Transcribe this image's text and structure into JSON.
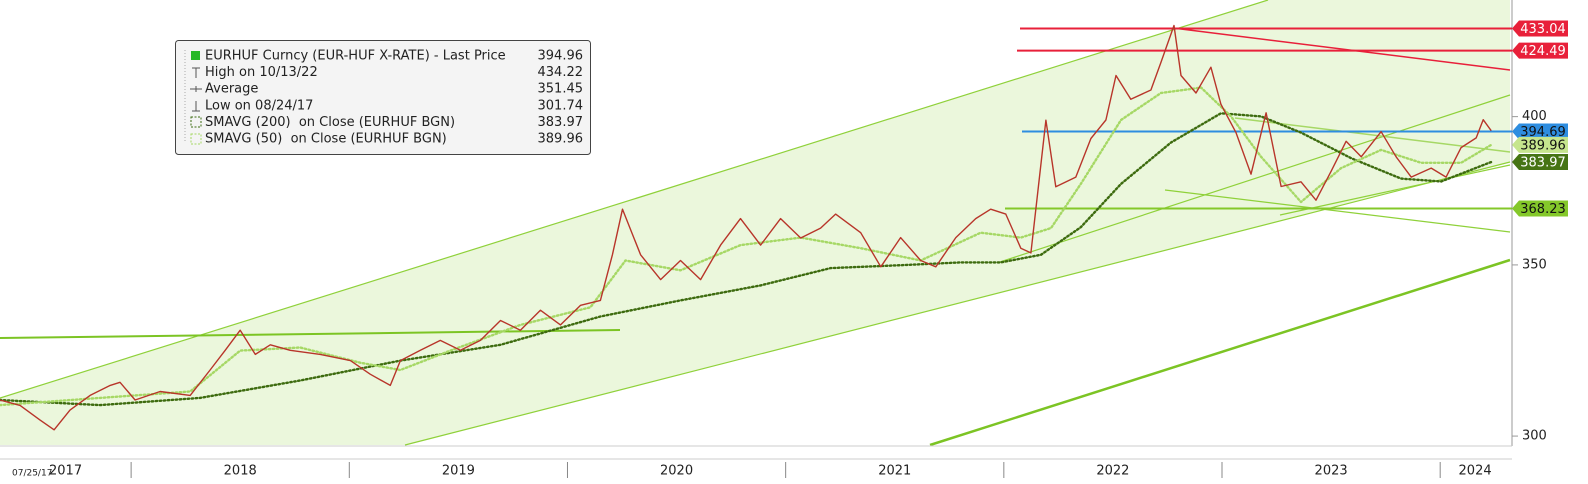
{
  "chart_data": {
    "type": "line",
    "ylog": true,
    "ylim": [
      297.6,
      444.3
    ],
    "yticks": [
      300,
      350,
      400
    ],
    "xlim": [
      2017.399,
      2024.32
    ],
    "xticks": [
      2018,
      2019,
      2020,
      2021,
      2022,
      2023,
      2024
    ],
    "x_labels": [
      "2017",
      "2018",
      "2019",
      "2020",
      "2021",
      "2022",
      "2023",
      "2024"
    ],
    "start_date_label": "07/25/17",
    "series": [
      {
        "name": "EURHUF Curncy (EUR-HUF X-RATE) - Last Price",
        "legend_value": 394.96,
        "color": "#b8352a",
        "style": "solid",
        "x": [
          2017.399,
          2017.491,
          2017.582,
          2017.647,
          2017.72,
          2017.812,
          2017.904,
          2017.949,
          2018.018,
          2018.133,
          2018.271,
          2018.362,
          2018.431,
          2018.5,
          2018.569,
          2018.638,
          2018.729,
          2018.867,
          2019.005,
          2019.096,
          2019.188,
          2019.234,
          2019.326,
          2019.417,
          2019.509,
          2019.601,
          2019.693,
          2019.784,
          2019.876,
          2019.968,
          2020.06,
          2020.151,
          2020.206,
          2020.252,
          2020.335,
          2020.427,
          2020.518,
          2020.61,
          2020.702,
          2020.793,
          2020.885,
          2020.977,
          2021.069,
          2021.16,
          2021.229,
          2021.344,
          2021.436,
          2021.527,
          2021.619,
          2021.688,
          2021.78,
          2021.871,
          2021.94,
          2022.009,
          2022.078,
          2022.124,
          2022.193,
          2022.238,
          2022.33,
          2022.399,
          2022.468,
          2022.514,
          2022.582,
          2022.674,
          2022.72,
          2022.78,
          2022.812,
          2022.881,
          2022.949,
          2022.995,
          2023.064,
          2023.133,
          2023.202,
          2023.271,
          2023.362,
          2023.431,
          2023.5,
          2023.569,
          2023.638,
          2023.729,
          2023.798,
          2023.867,
          2023.959,
          2024.027,
          2024.096,
          2024.165,
          2024.197,
          2024.234
        ],
        "values": [
          309.9,
          308.4,
          304.4,
          301.7,
          307.1,
          311.2,
          314.0,
          314.9,
          309.9,
          312.3,
          311.2,
          318.4,
          324.1,
          330.0,
          322.9,
          325.7,
          324.1,
          322.9,
          321.1,
          317.2,
          314.0,
          321.1,
          324.1,
          327.0,
          324.1,
          327.0,
          332.9,
          330.0,
          336.0,
          331.6,
          337.5,
          339.0,
          353.2,
          368.0,
          353.2,
          345.4,
          351.4,
          345.4,
          356.3,
          364.9,
          356.3,
          364.9,
          358.6,
          361.8,
          366.4,
          360.3,
          349.4,
          358.7,
          351.4,
          349.4,
          358.7,
          364.9,
          368.0,
          366.4,
          355.3,
          353.8,
          398.7,
          375.5,
          378.8,
          392.2,
          398.8,
          415.1,
          406.3,
          409.7,
          420.0,
          434.2,
          415.1,
          408.6,
          418.2,
          404.5,
          394.3,
          379.8,
          401.4,
          375.6,
          377.2,
          371.0,
          380.8,
          391.2,
          385.8,
          394.6,
          385.8,
          378.8,
          381.9,
          378.8,
          389.0,
          392.4,
          398.9,
          394.96
        ]
      },
      {
        "name": "SMAVG (200)  on Close (EURHUF BGN)",
        "legend_value": 383.97,
        "color": "#3d6b0f",
        "style": "dotted",
        "x": [
          2017.399,
          2017.858,
          2018.316,
          2018.775,
          2019.234,
          2019.693,
          2020.151,
          2020.518,
          2020.885,
          2021.206,
          2021.527,
          2021.803,
          2021.986,
          2022.17,
          2022.353,
          2022.537,
          2022.766,
          2022.995,
          2023.179,
          2023.362,
          2023.592,
          2023.821,
          2024.004,
          2024.234
        ],
        "values": [
          309.9,
          308.5,
          310.5,
          315.4,
          321.1,
          325.7,
          334.1,
          339.0,
          343.6,
          349.0,
          349.9,
          350.8,
          350.8,
          353.2,
          362.1,
          376.5,
          390.8,
          401.2,
          400.1,
          394.3,
          385.3,
          378.3,
          377.3,
          383.97
        ]
      },
      {
        "name": "SMAVG (50)  on Close (EURHUF BGN)",
        "legend_value": 389.96,
        "color": "#a6d865",
        "style": "dotted",
        "x": [
          2017.399,
          2017.858,
          2018.271,
          2018.5,
          2018.775,
          2019.05,
          2019.234,
          2019.463,
          2019.784,
          2020.105,
          2020.266,
          2020.518,
          2020.793,
          2021.069,
          2021.344,
          2021.619,
          2021.894,
          2022.078,
          2022.216,
          2022.353,
          2022.537,
          2022.72,
          2022.904,
          2023.041,
          2023.179,
          2023.362,
          2023.546,
          2023.729,
          2023.913,
          2024.096,
          2024.234
        ],
        "values": [
          308.5,
          310.5,
          312.3,
          324.0,
          324.9,
          320.5,
          318.4,
          324.0,
          331.6,
          336.9,
          351.4,
          348.3,
          356.3,
          358.7,
          355.3,
          351.4,
          360.3,
          358.7,
          361.8,
          376.5,
          398.8,
          408.6,
          410.6,
          400.1,
          385.8,
          370.4,
          381.9,
          388.2,
          383.7,
          383.7,
          389.96
        ]
      }
    ],
    "stats": [
      {
        "label": "High on 10/13/22",
        "value": 434.22
      },
      {
        "label": "Average",
        "value": 351.45
      },
      {
        "label": "Low on 08/24/17",
        "value": 301.74
      }
    ],
    "levels": [
      {
        "value": 433.04,
        "color": "#e8203a",
        "text_color": "#ffffff",
        "line": true
      },
      {
        "value": 424.49,
        "color": "#e8203a",
        "text_color": "#ffffff",
        "line": true
      },
      {
        "value": 394.69,
        "color": "#2e8de0",
        "text_color": "#111111",
        "line": true
      },
      {
        "value": 389.96,
        "color": "#c6e58e",
        "text_color": "#111111",
        "line": false
      },
      {
        "value": 383.97,
        "color": "#467414",
        "text_color": "#ffffff",
        "line": false
      },
      {
        "value": 368.23,
        "color": "#84c82a",
        "text_color": "#111111",
        "line": true
      }
    ]
  }
}
